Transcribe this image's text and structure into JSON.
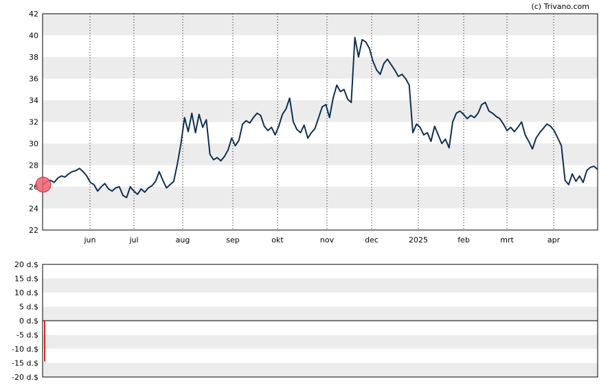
{
  "credit": "(c) Trivano.com",
  "colors": {
    "band": "#ececec",
    "line": "#0d2f4f",
    "marker": "#f06070",
    "bar": "#e02020"
  },
  "chart_data": [
    {
      "type": "line",
      "yticks": [
        "42",
        "40",
        "38",
        "36",
        "34",
        "32",
        "30",
        "28",
        "26",
        "24",
        "22"
      ],
      "ylim": [
        22,
        42
      ],
      "xticks": [
        "jun",
        "jul",
        "aug",
        "sep",
        "okt",
        "nov",
        "dec",
        "2025",
        "feb",
        "mrt",
        "apr"
      ],
      "grid": true,
      "series": [
        {
          "values": [
            26.2,
            26.5,
            26.6,
            26.4,
            26.8,
            27.0,
            26.9,
            27.2,
            27.4,
            27.5,
            27.7,
            27.4,
            27.0,
            26.4,
            26.2,
            25.6,
            26.0,
            26.3,
            25.8,
            25.6,
            25.9,
            26.0,
            25.2,
            25.0,
            26.0,
            25.6,
            25.3,
            25.8,
            25.5,
            25.9,
            26.1,
            26.5,
            27.4,
            26.6,
            25.9,
            26.2,
            26.5,
            28.1,
            30.0,
            32.4,
            31.1,
            32.8,
            31.0,
            32.7,
            31.5,
            32.2,
            29.0,
            28.5,
            28.7,
            28.4,
            28.8,
            29.4,
            30.5,
            29.8,
            30.3,
            31.8,
            32.1,
            31.9,
            32.4,
            32.8,
            32.6,
            31.6,
            31.2,
            31.5,
            30.8,
            31.6,
            32.7,
            33.2,
            34.2,
            32.0,
            31.3,
            31.0,
            31.7,
            30.5,
            31.0,
            31.4,
            32.4,
            33.4,
            33.6,
            32.4,
            34.2,
            35.4,
            34.8,
            35.0,
            34.1,
            33.8,
            39.8,
            38.0,
            39.6,
            39.4,
            38.8,
            37.6,
            36.8,
            36.4,
            37.4,
            37.8,
            37.3,
            36.8,
            36.2,
            36.4,
            36.0,
            35.4,
            31.0,
            31.8,
            31.5,
            30.8,
            31.0,
            30.2,
            31.6,
            30.8,
            30.0,
            30.4,
            29.6,
            32.0,
            32.8,
            33.0,
            32.7,
            32.3,
            32.6,
            32.4,
            32.8,
            33.6,
            33.8,
            33.0,
            32.8,
            32.5,
            32.3,
            31.8,
            31.2,
            31.5,
            31.1,
            31.5,
            32.0,
            30.8,
            30.2,
            29.5,
            30.5,
            31.0,
            31.4,
            31.8,
            31.6,
            31.2,
            30.5,
            29.8,
            26.6,
            26.2,
            27.2,
            26.5,
            27.0,
            26.4,
            27.5,
            27.8,
            27.9,
            27.6
          ]
        }
      ]
    },
    {
      "type": "bar",
      "yticks": [
        "20 d.$",
        "15 d.$",
        "10 d.$",
        "5 d.$",
        "0 d.$",
        "-5 d.$",
        "-10 d.$",
        "-15 d.$",
        "-20 d.$"
      ],
      "ylim": [
        -20,
        20
      ],
      "values": [
        -14.5
      ]
    }
  ]
}
